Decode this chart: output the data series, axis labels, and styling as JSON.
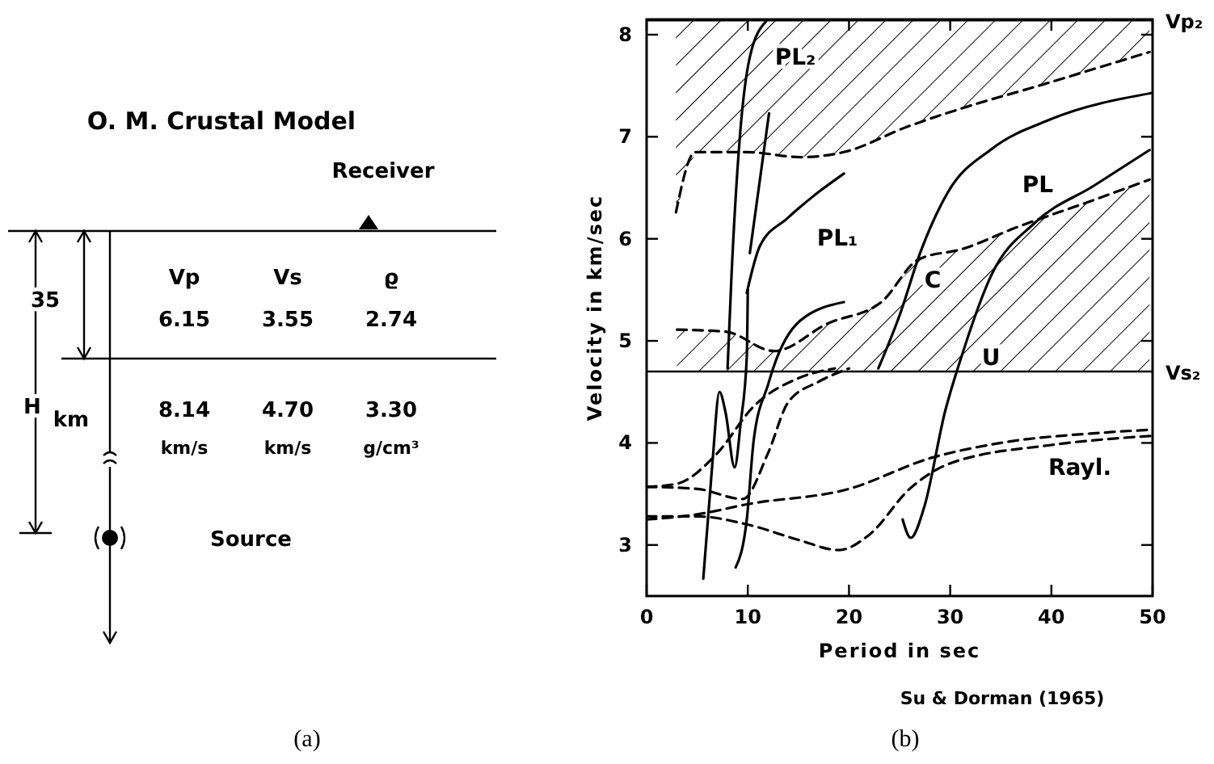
{
  "chart_data": [
    {
      "type": "other",
      "title": "O. M. Crustal Model",
      "annotations": [
        "Receiver",
        "35",
        "H",
        "km",
        "Vp",
        "Vs",
        "ϱ",
        "6.15",
        "3.55",
        "2.74",
        "8.14",
        "4.70",
        "3.30",
        "km/s",
        "km/s",
        "g/cm³",
        "Source",
        "(a)"
      ]
    },
    {
      "type": "line",
      "xlabel": "Period in sec",
      "ylabel": "Velocity in km/sec",
      "xlim": [
        0,
        50
      ],
      "ylim": [
        2.5,
        8.15
      ],
      "xticks": [
        0,
        10,
        20,
        30,
        40,
        50
      ],
      "yticks": [
        3,
        4,
        5,
        6,
        7,
        8
      ],
      "grid": false,
      "ref_lines": [
        {
          "axis": "y",
          "value": 8.14,
          "label": "Vp₂"
        },
        {
          "axis": "y",
          "value": 4.7,
          "label": "Vs₂"
        }
      ],
      "series": [
        {
          "color": "#000000",
          "line_style": "dashed",
          "x": [
            2.9,
            4.8,
            9.9,
            15.2,
            19.5,
            25.8,
            31.2,
            39.1,
            44.4,
            49.7
          ],
          "values": [
            6.26,
            6.85,
            6.85,
            6.8,
            6.85,
            7.1,
            7.28,
            7.51,
            7.67,
            7.83
          ],
          "lower": [
            6.26,
            6.85,
            6.85,
            6.8,
            6.85,
            7.1,
            7.28,
            7.51,
            7.67,
            7.83
          ],
          "upper": [
            8.14,
            8.14,
            8.14,
            8.14,
            8.14,
            8.14,
            8.14,
            8.14,
            8.14,
            8.14
          ]
        },
        {
          "color": "#000000",
          "line_style": "dashed",
          "x": [
            3,
            7.8,
            12.6,
            17.9,
            23.2,
            26.9,
            31.2,
            36.5,
            43.9,
            49.7
          ],
          "values": [
            5.11,
            5.09,
            4.9,
            5.17,
            5.38,
            5.8,
            5.9,
            6.11,
            6.37,
            6.58
          ],
          "lower": [
            4.7,
            4.7,
            4.7,
            4.7,
            4.7,
            4.7,
            4.7,
            4.7,
            4.7,
            4.7
          ],
          "upper": [
            5.11,
            5.09,
            4.9,
            5.17,
            5.38,
            5.8,
            5.9,
            6.11,
            6.37,
            6.58
          ]
        },
        {
          "color": "#000000",
          "line_style": "solid",
          "x": [
            5.6,
            6.5,
            7.2,
            7.8,
            8.7,
            9.3,
            9.9,
            10
          ],
          "values": [
            2.67,
            3.8,
            4.5,
            4.3,
            3.76,
            4.2,
            4.84,
            5.5
          ]
        },
        {
          "color": "#000000",
          "line_style": "solid",
          "x": [
            8,
            8.4,
            9.2,
            10.2,
            11.8
          ],
          "values": [
            4.73,
            5.66,
            6.98,
            7.78,
            8.13
          ]
        },
        {
          "color": "#000000",
          "line_style": "solid",
          "x": [
            10.2,
            12.1
          ],
          "values": [
            5.86,
            7.23
          ]
        },
        {
          "color": "#000000",
          "line_style": "solid",
          "x": [
            9.9,
            11.2,
            13.9,
            16.5,
            19.5
          ],
          "values": [
            5.47,
            5.93,
            6.2,
            6.42,
            6.64
          ]
        },
        {
          "color": "#000000",
          "line_style": "solid",
          "x": [
            8.8,
            9.9,
            10.6,
            12,
            12.5,
            15.2,
            19.5
          ],
          "values": [
            2.78,
            3.25,
            4.04,
            4.57,
            4.73,
            5.2,
            5.38
          ]
        },
        {
          "color": "#000000",
          "line_style": "solid",
          "x": [
            22.9,
            25,
            27.1,
            29.8,
            34.1,
            39.9,
            50
          ],
          "values": [
            4.73,
            5.25,
            5.88,
            6.46,
            6.88,
            7.17,
            7.43
          ]
        },
        {
          "color": "#000000",
          "line_style": "solid",
          "x": [
            25.3,
            26.1,
            27.4,
            29.5,
            31.1,
            34.1,
            38.4,
            44.2,
            49.7
          ],
          "values": [
            3.25,
            3.07,
            3.36,
            4.31,
            4.84,
            5.65,
            6.16,
            6.52,
            6.87
          ]
        },
        {
          "color": "#000000",
          "line_style": "dashed",
          "x": [
            0,
            5,
            9.5,
            12,
            14,
            17,
            20
          ],
          "values": [
            3.57,
            3.55,
            3.45,
            3.9,
            4.4,
            4.6,
            4.73
          ]
        },
        {
          "color": "#000000",
          "line_style": "dashed",
          "x": [
            0,
            5,
            10,
            20,
            28,
            35,
            45,
            50
          ],
          "values": [
            3.25,
            3.3,
            3.4,
            3.55,
            3.85,
            4,
            4.1,
            4.13
          ]
        },
        {
          "color": "#000000",
          "line_style": "dashed",
          "x": [
            0,
            5,
            10,
            15,
            19,
            22,
            26,
            30,
            40,
            50
          ],
          "values": [
            3.28,
            3.28,
            3.2,
            3.05,
            2.95,
            3.1,
            3.55,
            3.8,
            3.98,
            4.07
          ]
        },
        {
          "color": "#000000",
          "line_style": "dashed",
          "x": [
            0,
            3,
            6.9,
            10.6,
            14.9,
            18.6
          ],
          "values": [
            3.57,
            3.6,
            3.89,
            4.36,
            4.63,
            4.73
          ]
        }
      ],
      "annotations": [
        "PL₂",
        "PL₁",
        "PL",
        "C",
        "U",
        "Rayl.",
        "Su & Dorman (1965)",
        "(b)"
      ]
    }
  ]
}
